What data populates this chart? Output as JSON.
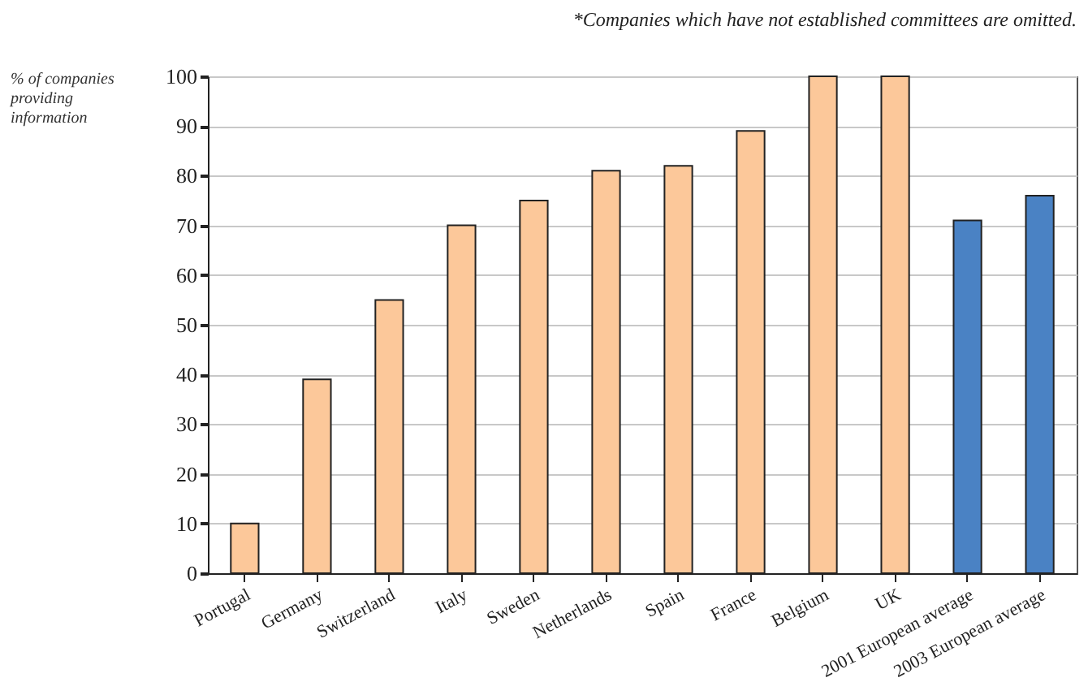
{
  "chart_data": {
    "type": "bar",
    "annotations": [
      "*Companies which have not established committees are omitted."
    ],
    "ylabel": "% of companies providing information",
    "categories": [
      "Portugal",
      "Germany",
      "Switzerland",
      "Italy",
      "Sweden",
      "Netherlands",
      "Spain",
      "France",
      "Belgium",
      "UK",
      "2001 European average",
      "2003 European average"
    ],
    "values": [
      10,
      39,
      55,
      70,
      75,
      81,
      82,
      89,
      100,
      100,
      71,
      76
    ],
    "colors": [
      "#fcc89a",
      "#fcc89a",
      "#fcc89a",
      "#fcc89a",
      "#fcc89a",
      "#fcc89a",
      "#fcc89a",
      "#fcc89a",
      "#fcc89a",
      "#fcc89a",
      "#4a82c4",
      "#4a82c4"
    ],
    "ylim": [
      0,
      100
    ],
    "yticks": [
      0,
      10,
      20,
      30,
      40,
      50,
      60,
      70,
      80,
      90,
      100
    ],
    "grid": "y"
  }
}
